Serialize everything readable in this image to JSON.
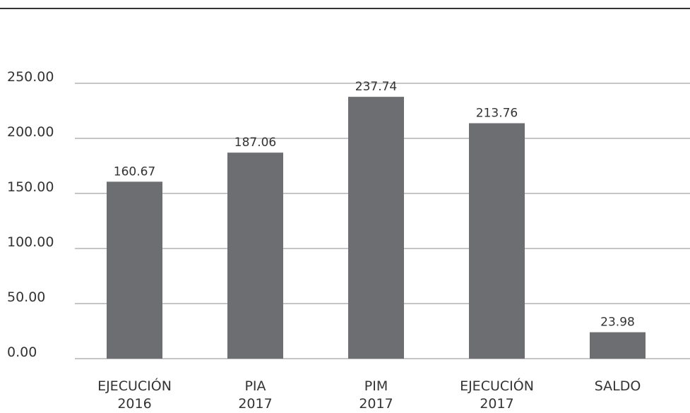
{
  "chart_data": {
    "type": "bar",
    "categories": [
      [
        "EJECUCIÓN",
        "2016"
      ],
      [
        "PIA",
        "2017"
      ],
      [
        "PIM",
        "2017"
      ],
      [
        "EJECUCIÓN",
        "2017"
      ],
      [
        "SALDO"
      ]
    ],
    "values": [
      160.67,
      187.06,
      237.74,
      213.76,
      23.98
    ],
    "data_labels": [
      "160.67",
      "187.06",
      "237.74",
      "213.76",
      "23.98"
    ],
    "yticks": [
      "0.00",
      "50.00",
      "100.00",
      "150.00",
      "200.00",
      "250.00"
    ],
    "ytick_values": [
      0,
      50,
      100,
      150,
      200,
      250
    ],
    "ylim": [
      0,
      250
    ],
    "grid": true,
    "legend": "none",
    "colors": {
      "bar": "#6d6e71",
      "grid": "#8c8c8c",
      "text": "#333333",
      "top_rule": "#333333"
    }
  }
}
